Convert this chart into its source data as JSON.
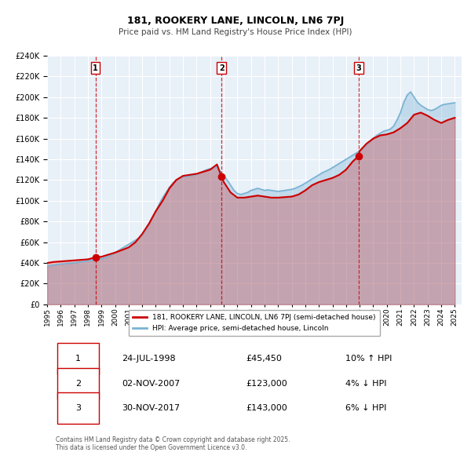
{
  "title": "181, ROOKERY LANE, LINCOLN, LN6 7PJ",
  "subtitle": "Price paid vs. HM Land Registry's House Price Index (HPI)",
  "background_color": "#ffffff",
  "plot_bg_color": "#e8f0f8",
  "grid_color": "#ffffff",
  "ylim": [
    0,
    240000
  ],
  "yticks": [
    0,
    20000,
    40000,
    60000,
    80000,
    100000,
    120000,
    140000,
    160000,
    180000,
    200000,
    220000,
    240000
  ],
  "xlim_start": 1995.0,
  "xlim_end": 2025.5,
  "xticks": [
    1995,
    1996,
    1997,
    1998,
    1999,
    2000,
    2001,
    2002,
    2003,
    2004,
    2005,
    2006,
    2007,
    2008,
    2009,
    2010,
    2011,
    2012,
    2013,
    2014,
    2015,
    2016,
    2017,
    2018,
    2019,
    2020,
    2021,
    2022,
    2023,
    2024,
    2025
  ],
  "sale_color": "#cc0000",
  "hpi_color": "#7ab3d4",
  "sale_label": "181, ROOKERY LANE, LINCOLN, LN6 7PJ (semi-detached house)",
  "hpi_label": "HPI: Average price, semi-detached house, Lincoln",
  "transactions": [
    {
      "num": 1,
      "date_x": 1998.56,
      "price": 45450,
      "label": "1",
      "arrow": "up"
    },
    {
      "num": 2,
      "date_x": 2007.84,
      "price": 123000,
      "label": "2",
      "arrow": "down"
    },
    {
      "num": 3,
      "date_x": 2017.92,
      "price": 143000,
      "label": "3",
      "arrow": "down"
    }
  ],
  "vline_dates": [
    1998.56,
    2007.84,
    2017.92
  ],
  "table_rows": [
    {
      "num": "1",
      "date": "24-JUL-1998",
      "price": "£45,450",
      "hpi": "10% ↑ HPI"
    },
    {
      "num": "2",
      "date": "02-NOV-2007",
      "price": "£123,000",
      "hpi": "4% ↓ HPI"
    },
    {
      "num": "3",
      "date": "30-NOV-2017",
      "price": "£143,000",
      "hpi": "6% ↓ HPI"
    }
  ],
  "footer": "Contains HM Land Registry data © Crown copyright and database right 2025.\nThis data is licensed under the Open Government Licence v3.0.",
  "hpi_data_x": [
    1995.0,
    1995.25,
    1995.5,
    1995.75,
    1996.0,
    1996.25,
    1996.5,
    1996.75,
    1997.0,
    1997.25,
    1997.5,
    1997.75,
    1998.0,
    1998.25,
    1998.5,
    1998.75,
    1999.0,
    1999.25,
    1999.5,
    1999.75,
    2000.0,
    2000.25,
    2000.5,
    2000.75,
    2001.0,
    2001.25,
    2001.5,
    2001.75,
    2002.0,
    2002.25,
    2002.5,
    2002.75,
    2003.0,
    2003.25,
    2003.5,
    2003.75,
    2004.0,
    2004.25,
    2004.5,
    2004.75,
    2005.0,
    2005.25,
    2005.5,
    2005.75,
    2006.0,
    2006.25,
    2006.5,
    2006.75,
    2007.0,
    2007.25,
    2007.5,
    2007.75,
    2008.0,
    2008.25,
    2008.5,
    2008.75,
    2009.0,
    2009.25,
    2009.5,
    2009.75,
    2010.0,
    2010.25,
    2010.5,
    2010.75,
    2011.0,
    2011.25,
    2011.5,
    2011.75,
    2012.0,
    2012.25,
    2012.5,
    2012.75,
    2013.0,
    2013.25,
    2013.5,
    2013.75,
    2014.0,
    2014.25,
    2014.5,
    2014.75,
    2015.0,
    2015.25,
    2015.5,
    2015.75,
    2016.0,
    2016.25,
    2016.5,
    2016.75,
    2017.0,
    2017.25,
    2017.5,
    2017.75,
    2018.0,
    2018.25,
    2018.5,
    2018.75,
    2019.0,
    2019.25,
    2019.5,
    2019.75,
    2020.0,
    2020.25,
    2020.5,
    2020.75,
    2021.0,
    2021.25,
    2021.5,
    2021.75,
    2022.0,
    2022.25,
    2022.5,
    2022.75,
    2023.0,
    2023.25,
    2023.5,
    2023.75,
    2024.0,
    2024.25,
    2024.5,
    2024.75,
    2025.0
  ],
  "hpi_data_y": [
    37000,
    37500,
    38000,
    38500,
    39000,
    39200,
    39500,
    39800,
    40000,
    40500,
    41000,
    41500,
    42000,
    42500,
    43000,
    43500,
    44000,
    45000,
    46500,
    48000,
    50000,
    52000,
    54000,
    56000,
    58000,
    60000,
    62000,
    64000,
    67000,
    72000,
    78000,
    84000,
    90000,
    97000,
    103000,
    108000,
    113000,
    117000,
    120000,
    122000,
    123000,
    123500,
    124000,
    124500,
    125500,
    127000,
    128500,
    130000,
    131000,
    132000,
    132500,
    128000,
    124000,
    120000,
    115000,
    110000,
    107000,
    106000,
    107000,
    108000,
    110000,
    111000,
    112000,
    111000,
    110000,
    110500,
    110000,
    109500,
    109000,
    109500,
    110000,
    110500,
    111000,
    112000,
    113500,
    115000,
    117000,
    119000,
    121000,
    123000,
    125000,
    127000,
    128500,
    130000,
    132000,
    134000,
    136000,
    138000,
    140000,
    142000,
    144000,
    146000,
    148000,
    151000,
    154000,
    157000,
    160000,
    163000,
    165000,
    167000,
    168000,
    169000,
    172000,
    178000,
    185000,
    195000,
    202000,
    205000,
    200000,
    195000,
    192000,
    190000,
    188000,
    187000,
    188000,
    190000,
    192000,
    193000,
    193500,
    194000,
    194500
  ],
  "sale_data_x": [
    1995.0,
    1995.5,
    1996.0,
    1996.5,
    1997.0,
    1997.5,
    1998.0,
    1998.56,
    1999.0,
    2000.0,
    2001.0,
    2001.5,
    2002.0,
    2002.5,
    2003.0,
    2003.5,
    2004.0,
    2004.5,
    2005.0,
    2005.5,
    2006.0,
    2006.5,
    2007.0,
    2007.5,
    2007.84,
    2008.0,
    2008.5,
    2009.0,
    2009.5,
    2010.0,
    2010.5,
    2011.0,
    2011.5,
    2012.0,
    2012.5,
    2013.0,
    2013.5,
    2014.0,
    2014.5,
    2015.0,
    2015.5,
    2016.0,
    2016.5,
    2017.0,
    2017.5,
    2017.92,
    2018.0,
    2018.5,
    2019.0,
    2019.5,
    2020.0,
    2020.5,
    2021.0,
    2021.5,
    2022.0,
    2022.5,
    2023.0,
    2023.5,
    2024.0,
    2024.5,
    2025.0
  ],
  "sale_data_y": [
    40000,
    41000,
    41500,
    42000,
    42500,
    43000,
    43500,
    45450,
    46000,
    50000,
    55000,
    60000,
    68000,
    78000,
    90000,
    100000,
    112000,
    120000,
    124000,
    125000,
    126000,
    128000,
    130000,
    135000,
    123000,
    118000,
    108000,
    103000,
    103000,
    104000,
    105000,
    104000,
    103000,
    103000,
    103500,
    104000,
    106000,
    110000,
    115000,
    118000,
    120000,
    122000,
    125000,
    130000,
    138000,
    143000,
    148000,
    155000,
    160000,
    163000,
    164000,
    166000,
    170000,
    175000,
    183000,
    185000,
    182000,
    178000,
    175000,
    178000,
    180000
  ]
}
